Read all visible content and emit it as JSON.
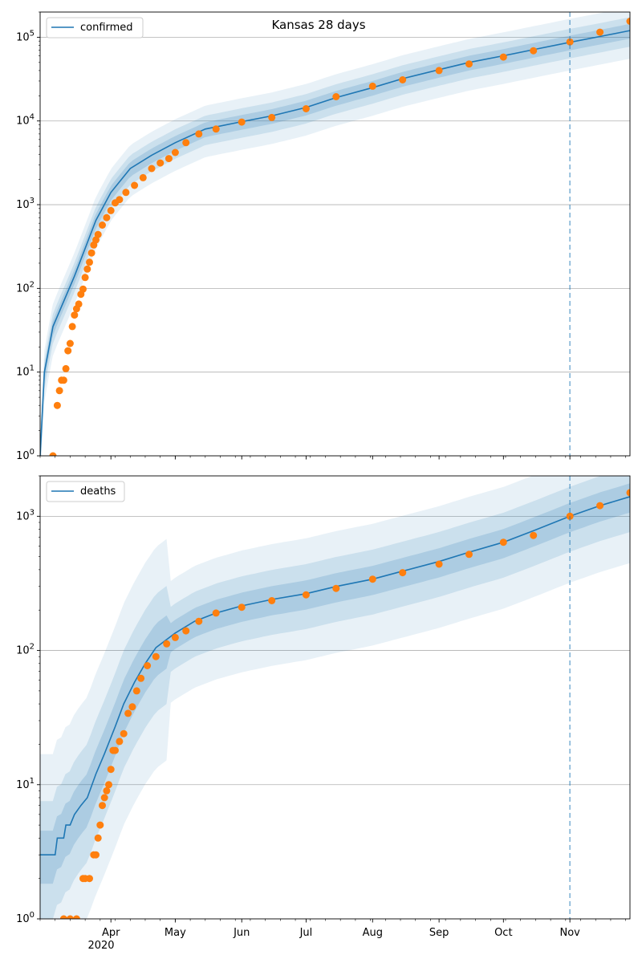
{
  "chart_data": [
    {
      "type": "line",
      "title": "Kansas 28 days",
      "xlabel": "",
      "ylabel": "",
      "yscale": "log",
      "ylim": [
        1,
        200000
      ],
      "xlim": [
        "2020-02-28",
        "2020-11-29"
      ],
      "grid": "y-major",
      "legend_placement": "top-left",
      "x_ticks": [
        "Apr",
        "May",
        "Jun",
        "Jul",
        "Aug",
        "Sep",
        "Oct",
        "Nov"
      ],
      "x_ticks_dates": [
        "2020-04-01",
        "2020-05-01",
        "2020-06-01",
        "2020-07-01",
        "2020-08-01",
        "2020-09-01",
        "2020-10-01",
        "2020-11-01"
      ],
      "x_tick_year_label": "2020",
      "y_ticks": [
        "10^0",
        "10^1",
        "10^2",
        "10^3",
        "10^4",
        "10^5"
      ],
      "y_tick_values": [
        1,
        10,
        100,
        1000,
        10000,
        100000
      ],
      "forecast_start": "2020-11-01",
      "series": [
        {
          "name": "confirmed",
          "kind": "model-line",
          "color": "#1f77b4",
          "x": [
            "2020-02-28",
            "2020-03-01",
            "2020-03-05",
            "2020-03-10",
            "2020-03-15",
            "2020-03-20",
            "2020-03-25",
            "2020-04-01",
            "2020-04-10",
            "2020-04-20",
            "2020-05-01",
            "2020-05-15",
            "2020-06-01",
            "2020-06-15",
            "2020-07-01",
            "2020-07-15",
            "2020-08-01",
            "2020-08-15",
            "2020-09-01",
            "2020-09-15",
            "2020-10-01",
            "2020-10-15",
            "2020-11-01",
            "2020-11-15",
            "2020-11-29"
          ],
          "y": [
            1,
            10,
            35,
            70,
            140,
            300,
            650,
            1400,
            2700,
            3900,
            5500,
            8000,
            9800,
            11500,
            14500,
            19000,
            25000,
            32000,
            41000,
            50000,
            60000,
            71000,
            87000,
            102000,
            120000
          ]
        },
        {
          "name": "confirmed-observed",
          "kind": "observed-dots",
          "color": "#ff7f0e",
          "x": [
            "2020-03-05",
            "2020-03-07",
            "2020-03-08",
            "2020-03-09",
            "2020-03-10",
            "2020-03-11",
            "2020-03-12",
            "2020-03-13",
            "2020-03-14",
            "2020-03-15",
            "2020-03-16",
            "2020-03-17",
            "2020-03-18",
            "2020-03-19",
            "2020-03-20",
            "2020-03-21",
            "2020-03-22",
            "2020-03-23",
            "2020-03-24",
            "2020-03-25",
            "2020-03-26",
            "2020-03-28",
            "2020-03-30",
            "2020-04-01",
            "2020-04-03",
            "2020-04-05",
            "2020-04-08",
            "2020-04-12",
            "2020-04-16",
            "2020-04-20",
            "2020-04-24",
            "2020-04-28",
            "2020-05-01",
            "2020-05-06",
            "2020-05-12",
            "2020-05-20",
            "2020-06-01",
            "2020-06-15",
            "2020-07-01",
            "2020-07-15",
            "2020-08-01",
            "2020-08-15",
            "2020-09-01",
            "2020-09-15",
            "2020-10-01",
            "2020-10-15",
            "2020-11-01",
            "2020-11-15",
            "2020-11-29"
          ],
          "y": [
            1,
            4,
            6,
            8,
            8,
            11,
            18,
            22,
            35,
            48,
            57,
            65,
            85,
            98,
            135,
            170,
            205,
            265,
            330,
            380,
            440,
            570,
            700,
            850,
            1050,
            1150,
            1400,
            1700,
            2100,
            2700,
            3150,
            3550,
            4200,
            5500,
            7000,
            8000,
            9700,
            11000,
            14000,
            19500,
            26000,
            31000,
            40000,
            48000,
            58000,
            69000,
            88000,
            115000,
            155000
          ]
        }
      ]
    },
    {
      "type": "line",
      "title": "",
      "xlabel": "",
      "ylabel": "",
      "yscale": "log",
      "ylim": [
        1,
        2000
      ],
      "xlim": [
        "2020-02-28",
        "2020-11-29"
      ],
      "grid": "y-major",
      "legend_placement": "top-left",
      "x_ticks": [
        "Apr",
        "May",
        "Jun",
        "Jul",
        "Aug",
        "Sep",
        "Oct",
        "Nov"
      ],
      "x_ticks_dates": [
        "2020-04-01",
        "2020-05-01",
        "2020-06-01",
        "2020-07-01",
        "2020-08-01",
        "2020-09-01",
        "2020-10-01",
        "2020-11-01"
      ],
      "x_tick_year_label": "2020",
      "y_ticks": [
        "10^0",
        "10^1",
        "10^2",
        "10^3"
      ],
      "y_tick_values": [
        1,
        10,
        100,
        1000
      ],
      "forecast_start": "2020-11-01",
      "series": [
        {
          "name": "deaths",
          "kind": "model-line",
          "color": "#1f77b4",
          "x": [
            "2020-02-28",
            "2020-03-06",
            "2020-03-07",
            "2020-03-10",
            "2020-03-11",
            "2020-03-13",
            "2020-03-15",
            "2020-03-18",
            "2020-03-21",
            "2020-03-25",
            "2020-03-29",
            "2020-04-03",
            "2020-04-07",
            "2020-04-12",
            "2020-04-17",
            "2020-04-22",
            "2020-05-01",
            "2020-05-10",
            "2020-05-20",
            "2020-06-01",
            "2020-06-15",
            "2020-07-01",
            "2020-07-15",
            "2020-08-01",
            "2020-08-15",
            "2020-09-01",
            "2020-09-15",
            "2020-10-01",
            "2020-10-15",
            "2020-11-01",
            "2020-11-15",
            "2020-11-29"
          ],
          "y": [
            3,
            3,
            4,
            4,
            5,
            5,
            6,
            7,
            8,
            12,
            17,
            27,
            40,
            58,
            80,
            105,
            135,
            165,
            190,
            215,
            240,
            265,
            300,
            340,
            390,
            460,
            540,
            640,
            780,
            1000,
            1200,
            1400
          ]
        },
        {
          "name": "deaths-observed",
          "kind": "observed-dots",
          "color": "#ff7f0e",
          "x": [
            "2020-03-10",
            "2020-03-13",
            "2020-03-16",
            "2020-03-19",
            "2020-03-20",
            "2020-03-22",
            "2020-03-24",
            "2020-03-25",
            "2020-03-26",
            "2020-03-27",
            "2020-03-28",
            "2020-03-29",
            "2020-03-30",
            "2020-03-31",
            "2020-04-01",
            "2020-04-02",
            "2020-04-03",
            "2020-04-05",
            "2020-04-07",
            "2020-04-09",
            "2020-04-11",
            "2020-04-13",
            "2020-04-15",
            "2020-04-18",
            "2020-04-22",
            "2020-04-27",
            "2020-05-01",
            "2020-05-06",
            "2020-05-12",
            "2020-05-20",
            "2020-06-01",
            "2020-06-15",
            "2020-07-01",
            "2020-07-15",
            "2020-08-01",
            "2020-08-15",
            "2020-09-01",
            "2020-09-15",
            "2020-10-01",
            "2020-10-15",
            "2020-11-01",
            "2020-11-15",
            "2020-11-29"
          ],
          "y": [
            1,
            1,
            1,
            2,
            2,
            2,
            3,
            3,
            4,
            5,
            7,
            8,
            9,
            10,
            13,
            18,
            18,
            21,
            24,
            34,
            38,
            50,
            62,
            77,
            90,
            112,
            125,
            140,
            165,
            190,
            210,
            235,
            260,
            290,
            340,
            380,
            440,
            520,
            640,
            720,
            1000,
            1200,
            1500
          ]
        }
      ]
    }
  ],
  "legend": [
    "confirmed",
    "deaths"
  ],
  "tick_label_year": "2020"
}
